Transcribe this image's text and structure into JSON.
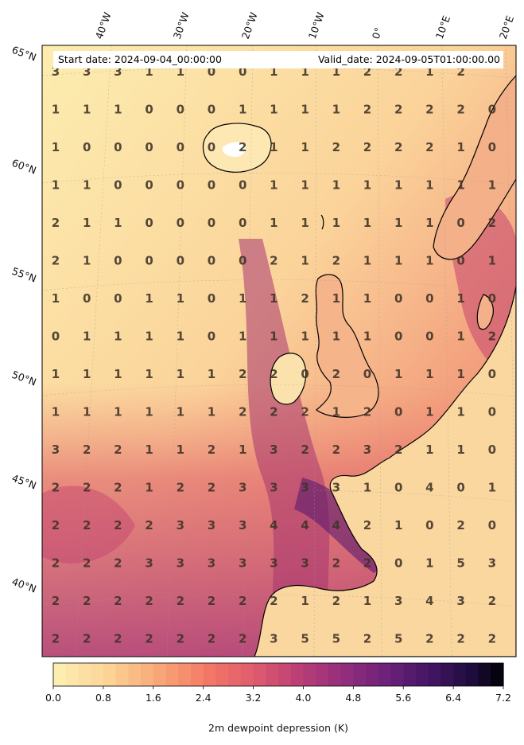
{
  "header": {
    "start_label": "Start date: 2024-09-04_00:00:00",
    "valid_label": "Valid_date: 2024-09-05T01:00:00.00"
  },
  "lon_labels": [
    "40°W",
    "30°W",
    "20°W",
    "10°W",
    "0°",
    "10°E",
    "20°E"
  ],
  "lat_labels": [
    "65°N",
    "60°N",
    "55°N",
    "50°N",
    "45°N",
    "40°N"
  ],
  "grid_values": [
    [
      3,
      3,
      3,
      1,
      1,
      0,
      0,
      1,
      1,
      1,
      2,
      2,
      1,
      2,
      null
    ],
    [
      1,
      1,
      1,
      0,
      0,
      0,
      1,
      1,
      1,
      1,
      2,
      2,
      2,
      2,
      0
    ],
    [
      1,
      0,
      0,
      0,
      0,
      0,
      2,
      1,
      1,
      2,
      2,
      2,
      2,
      1,
      0
    ],
    [
      1,
      1,
      0,
      0,
      0,
      0,
      0,
      1,
      1,
      1,
      1,
      1,
      1,
      1,
      1
    ],
    [
      2,
      1,
      1,
      0,
      0,
      0,
      0,
      1,
      1,
      1,
      1,
      1,
      1,
      0,
      2
    ],
    [
      2,
      1,
      0,
      0,
      0,
      0,
      0,
      2,
      1,
      2,
      1,
      1,
      1,
      0,
      1
    ],
    [
      1,
      0,
      0,
      1,
      1,
      0,
      1,
      1,
      2,
      1,
      1,
      0,
      0,
      1,
      0
    ],
    [
      0,
      1,
      1,
      1,
      1,
      0,
      1,
      1,
      1,
      1,
      1,
      0,
      0,
      1,
      2
    ],
    [
      1,
      1,
      1,
      1,
      1,
      1,
      2,
      2,
      0,
      2,
      0,
      1,
      1,
      1,
      0
    ],
    [
      1,
      1,
      1,
      1,
      1,
      1,
      2,
      2,
      2,
      1,
      2,
      0,
      1,
      1,
      0
    ],
    [
      3,
      2,
      2,
      1,
      1,
      2,
      1,
      3,
      2,
      2,
      3,
      2,
      1,
      1,
      0
    ],
    [
      2,
      2,
      2,
      1,
      2,
      2,
      3,
      3,
      3,
      3,
      1,
      0,
      4,
      0,
      1
    ],
    [
      2,
      2,
      2,
      2,
      3,
      3,
      3,
      4,
      4,
      4,
      2,
      1,
      0,
      2,
      0
    ],
    [
      2,
      2,
      2,
      3,
      3,
      3,
      3,
      3,
      3,
      2,
      2,
      0,
      1,
      5,
      3
    ],
    [
      2,
      2,
      2,
      2,
      2,
      2,
      2,
      2,
      1,
      2,
      1,
      3,
      4,
      3,
      2
    ],
    [
      2,
      2,
      2,
      2,
      2,
      2,
      2,
      3,
      5,
      5,
      2,
      5,
      2,
      2,
      2
    ]
  ],
  "colorbar": {
    "label": "2m dewpoint depression (K)",
    "ticks": [
      "0.0",
      "0.8",
      "1.6",
      "2.4",
      "3.2",
      "4.0",
      "4.8",
      "5.6",
      "6.4",
      "7.2"
    ],
    "min": 0,
    "max": 7.2,
    "step": 0.2
  },
  "colors": {
    "dry_low": "#fcebab",
    "mid": "#f7776a",
    "high": "#7a2680",
    "coastline": "#000000",
    "land_iceland_snow": "#ffffff"
  }
}
